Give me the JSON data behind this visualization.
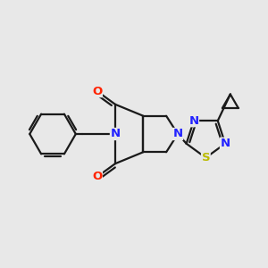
{
  "bg_color": "#e8e8e8",
  "bond_color": "#1a1a1a",
  "bond_width": 1.6,
  "atom_colors": {
    "N": "#2222ff",
    "O": "#ff2200",
    "S": "#bbbb00",
    "C": "#1a1a1a"
  },
  "font_size_atom": 9.5,
  "figsize": [
    3.0,
    3.0
  ],
  "dpi": 100
}
